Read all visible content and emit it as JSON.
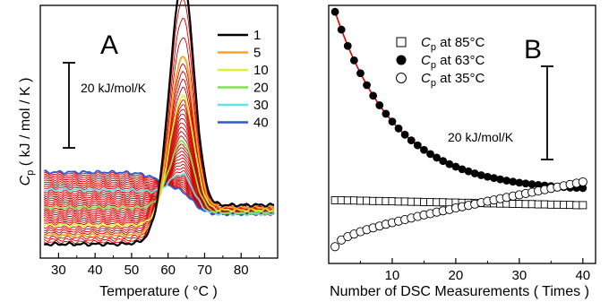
{
  "chart_data": [
    {
      "panel": "A",
      "type": "line",
      "xlabel": "Temperature ( °C )",
      "ylabel_main": "C",
      "ylabel_sub": "p",
      "ylabel_rest": " ( kJ / mol / K )",
      "xlim": [
        25,
        90
      ],
      "ylim": [
        0,
        1
      ],
      "xticks": [
        30,
        40,
        50,
        60,
        70,
        80
      ],
      "y_tick_labels": "none",
      "scale_bar_label": "20 kJ/mol/K",
      "legend": {
        "placement": "top-right",
        "entries": [
          {
            "label": "1",
            "color": "#000000"
          },
          {
            "label": "5",
            "color": "#f6a623"
          },
          {
            "label": "10",
            "color": "#dff23a"
          },
          {
            "label": "20",
            "color": "#7ee34e"
          },
          {
            "label": "30",
            "color": "#63e0e8"
          },
          {
            "label": "40",
            "color": "#2f56d6"
          }
        ]
      },
      "peak_temperature": 64,
      "key_curves": [
        {
          "scan": 1,
          "color": "#000000",
          "baseline_start": 0.055,
          "baseline_end": 0.21,
          "peak_height": 0.92
        },
        {
          "scan": 5,
          "color": "#f6a623",
          "baseline_start": 0.09,
          "baseline_end": 0.2,
          "peak_height": 0.62
        },
        {
          "scan": 10,
          "color": "#dff23a",
          "baseline_start": 0.13,
          "baseline_end": 0.19,
          "peak_height": 0.46
        },
        {
          "scan": 20,
          "color": "#7ee34e",
          "baseline_start": 0.2,
          "baseline_end": 0.18,
          "peak_height": 0.28
        },
        {
          "scan": 30,
          "color": "#63e0e8",
          "baseline_start": 0.27,
          "baseline_end": 0.175,
          "peak_height": 0.14
        },
        {
          "scan": 40,
          "color": "#2f56d6",
          "baseline_start": 0.34,
          "baseline_end": 0.175,
          "peak_height": 0.06
        }
      ],
      "intermediate_color": "#d00000",
      "intermediate_scan_count": 40
    },
    {
      "panel": "B",
      "type": "scatter",
      "xlabel": "Number of DSC Measurements ( Times )",
      "xlim": [
        0,
        42
      ],
      "ylim": [
        0,
        1
      ],
      "xticks": [
        10,
        20,
        30,
        40
      ],
      "y_tick_labels": "none",
      "scale_bar_label": "20 kJ/mol/K",
      "legend": {
        "placement": "top-left",
        "entries": [
          {
            "label_main": "C",
            "label_sub": "p",
            "label_rest": " at 85°C",
            "marker": "open-square"
          },
          {
            "label_main": "C",
            "label_sub": "p",
            "label_rest": " at 63°C",
            "marker": "filled-circle"
          },
          {
            "label_main": "C",
            "label_sub": "p",
            "label_rest": " at 35°C",
            "marker": "open-circle"
          }
        ]
      },
      "fit_line_color": "#e00000",
      "x": [
        1,
        2,
        3,
        4,
        5,
        6,
        7,
        8,
        9,
        10,
        11,
        12,
        13,
        14,
        15,
        16,
        17,
        18,
        19,
        20,
        21,
        22,
        23,
        24,
        25,
        26,
        27,
        28,
        29,
        30,
        31,
        32,
        33,
        34,
        35,
        36,
        37,
        38,
        39,
        40
      ],
      "series": [
        {
          "name": "Cp at 85°C",
          "marker": "open-square",
          "values": [
            0.245,
            0.245,
            0.244,
            0.244,
            0.243,
            0.243,
            0.242,
            0.242,
            0.241,
            0.241,
            0.24,
            0.24,
            0.239,
            0.239,
            0.238,
            0.238,
            0.237,
            0.237,
            0.236,
            0.236,
            0.235,
            0.235,
            0.234,
            0.234,
            0.233,
            0.233,
            0.232,
            0.232,
            0.231,
            0.231,
            0.23,
            0.23,
            0.229,
            0.229,
            0.228,
            0.228,
            0.227,
            0.227,
            0.226,
            0.226
          ]
        },
        {
          "name": "Cp at 63°C",
          "marker": "filled-circle",
          "values": [
            0.975,
            0.906,
            0.843,
            0.787,
            0.737,
            0.691,
            0.65,
            0.613,
            0.58,
            0.55,
            0.523,
            0.499,
            0.477,
            0.458,
            0.44,
            0.424,
            0.41,
            0.397,
            0.385,
            0.375,
            0.365,
            0.357,
            0.349,
            0.342,
            0.336,
            0.331,
            0.326,
            0.321,
            0.317,
            0.313,
            0.31,
            0.307,
            0.304,
            0.302,
            0.3,
            0.298,
            0.296,
            0.294,
            0.293,
            0.292
          ]
        },
        {
          "name": "Cp at 35°C",
          "marker": "open-circle",
          "values": [
            0.065,
            0.091,
            0.104,
            0.114,
            0.123,
            0.131,
            0.138,
            0.145,
            0.152,
            0.158,
            0.164,
            0.17,
            0.176,
            0.182,
            0.188,
            0.193,
            0.199,
            0.204,
            0.209,
            0.215,
            0.22,
            0.225,
            0.23,
            0.236,
            0.241,
            0.246,
            0.251,
            0.256,
            0.261,
            0.266,
            0.271,
            0.276,
            0.281,
            0.286,
            0.291,
            0.296,
            0.301,
            0.306,
            0.311,
            0.316
          ]
        }
      ]
    }
  ]
}
